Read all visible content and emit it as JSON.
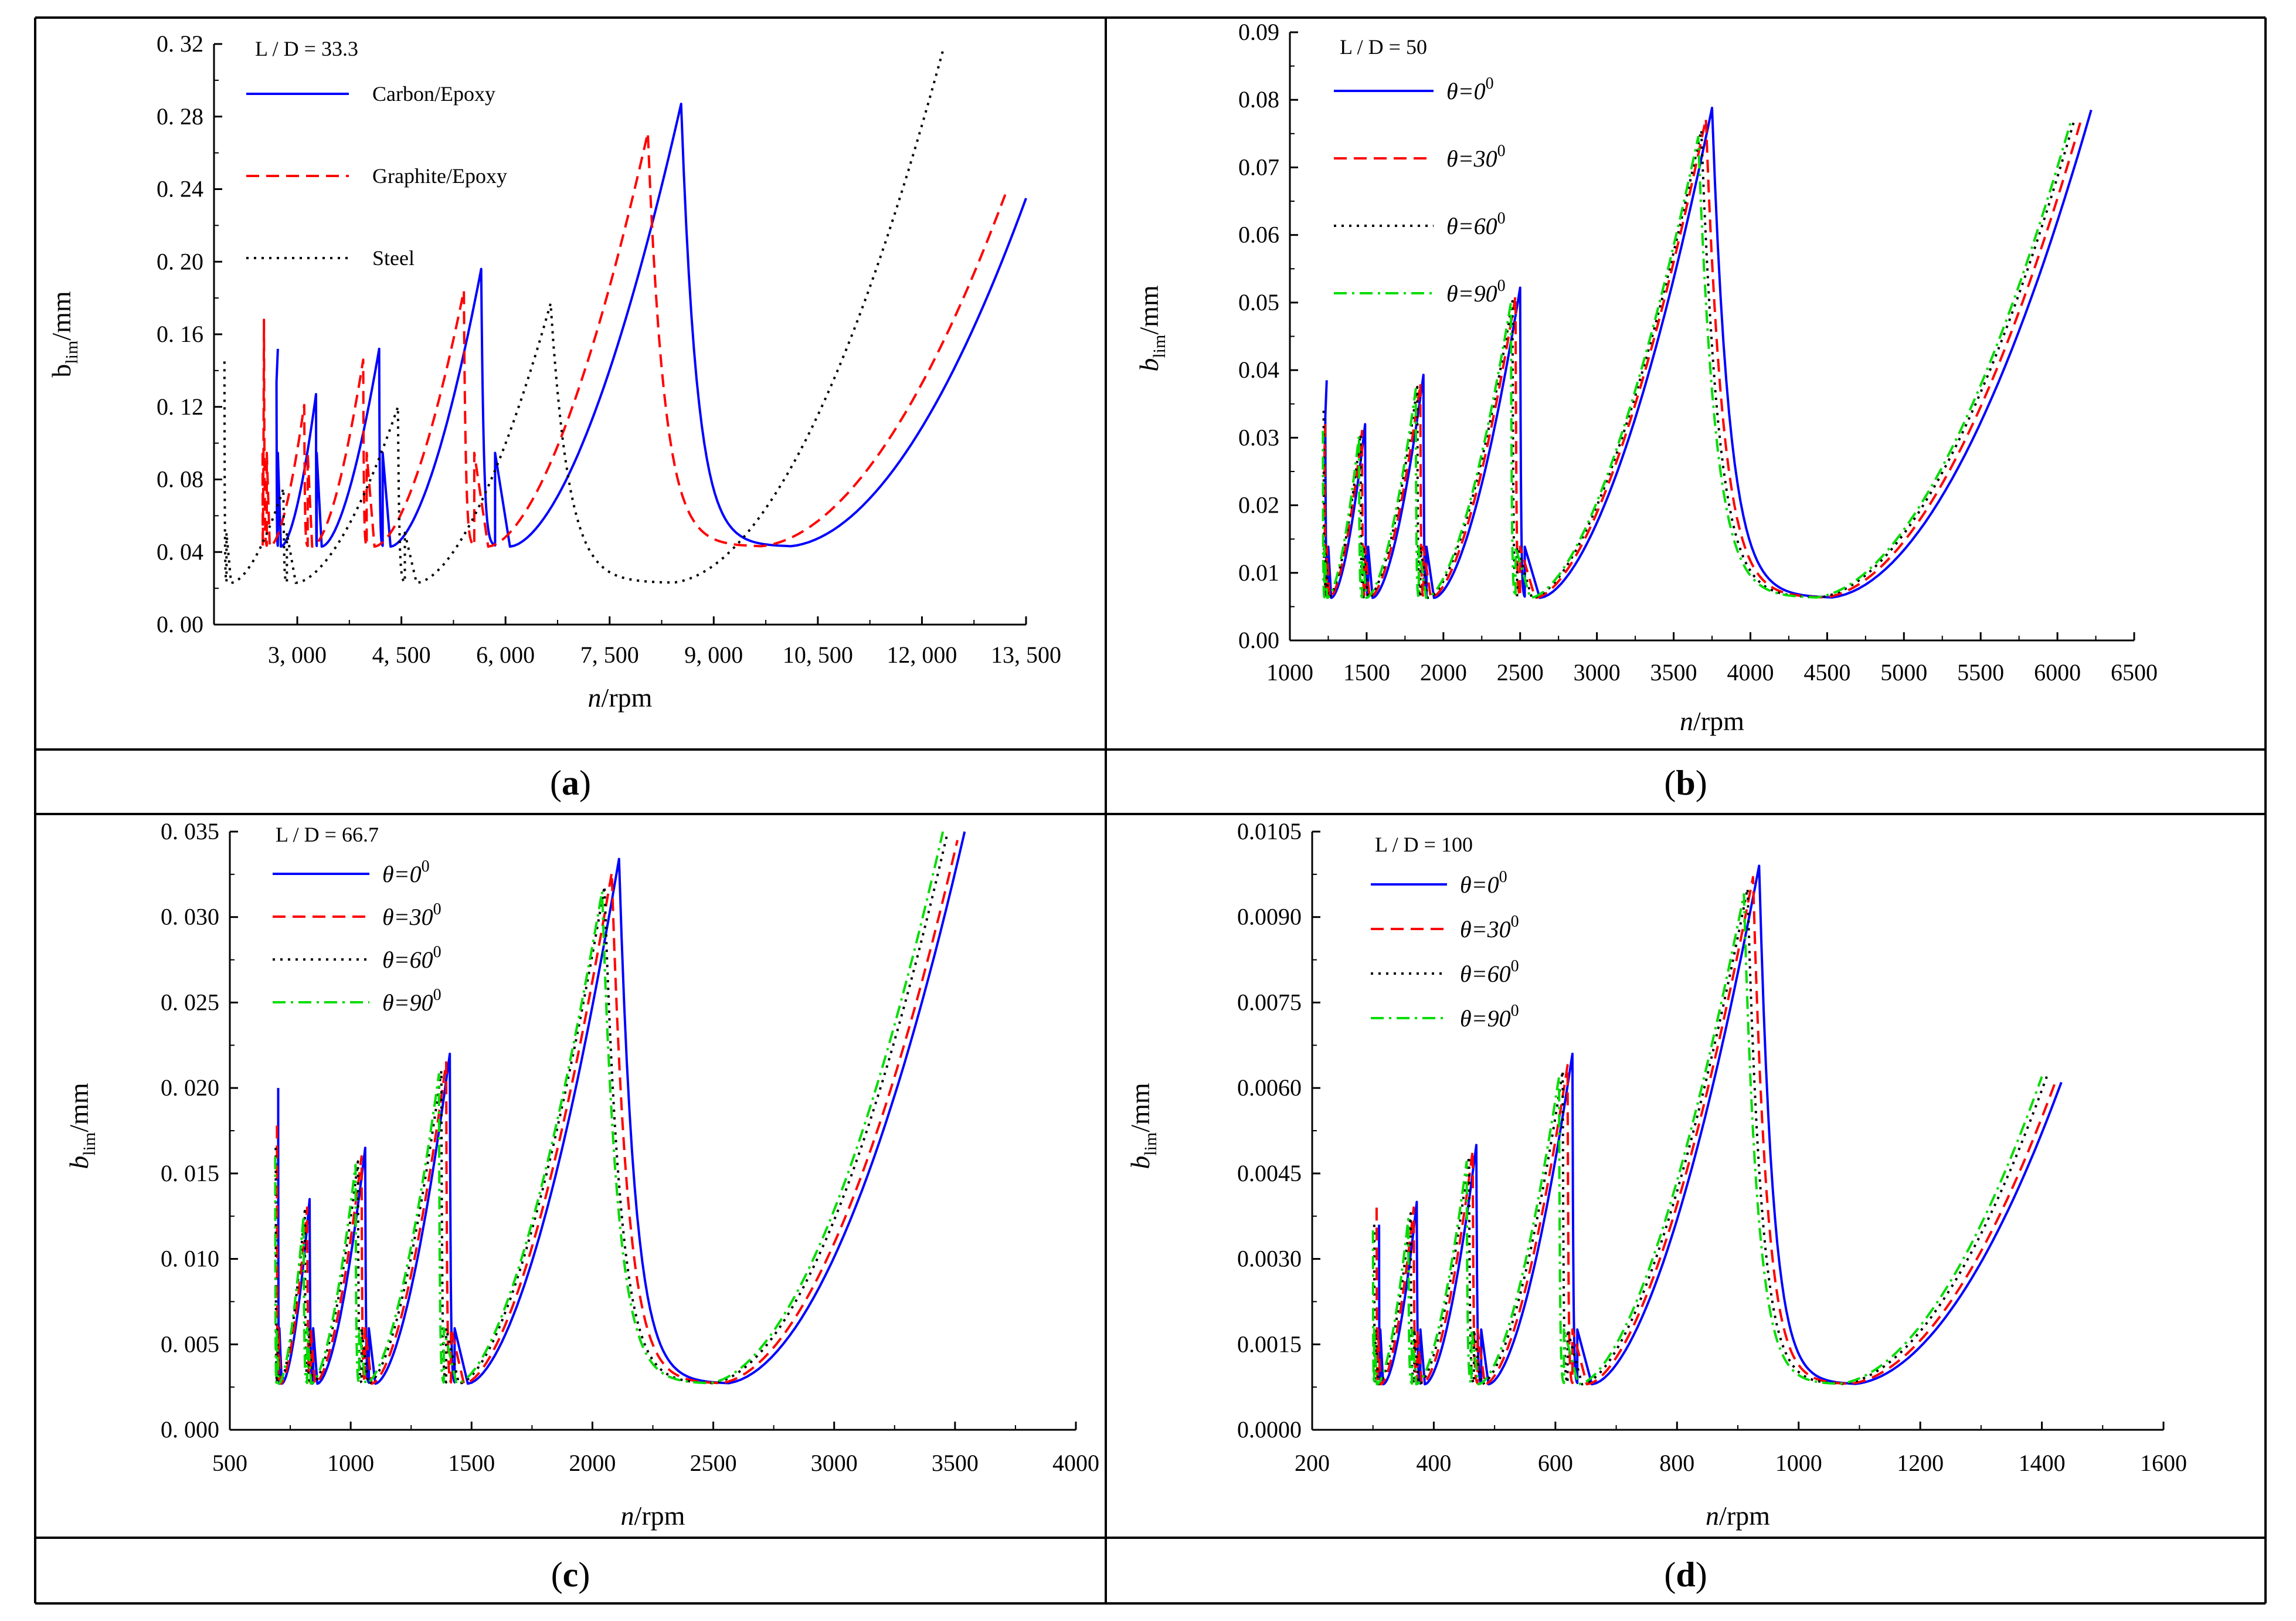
{
  "colors": {
    "blue": "#0000ff",
    "red": "#ff0000",
    "black": "#000000",
    "green": "#00dd00",
    "frame": "#000000"
  },
  "chart_data": [
    {
      "panel": "a",
      "type": "line",
      "caption": {
        "open": "(",
        "letter": "a",
        "close": ")"
      },
      "annotation": "L / D = 33.3",
      "xlabel": {
        "italic": "n",
        "rest": "/rpm"
      },
      "ylabel": {
        "main": "b",
        "sub": "lim",
        "rest": "/mm",
        "italic": false
      },
      "xlim": [
        1800,
        13500
      ],
      "ylim": [
        0,
        0.32
      ],
      "xticks": [
        3000,
        4500,
        6000,
        7500,
        9000,
        10500,
        12000,
        13500
      ],
      "xtick_labels": [
        "3, 000",
        "4, 500",
        "6, 000",
        "7, 500",
        "9, 000",
        "10, 500",
        "12, 000",
        "13, 500"
      ],
      "yticks": [
        0,
        0.04,
        0.08,
        0.12,
        0.16,
        0.2,
        0.24,
        0.28,
        0.32
      ],
      "ytick_labels": [
        "0. 00",
        "0. 04",
        "0. 08",
        "0. 12",
        "0. 16",
        "0. 20",
        "0. 24",
        "0. 28",
        "0. 32"
      ],
      "legend_style": "plain",
      "legend": [
        {
          "label": "Carbon/Epoxy",
          "color": "#0000ff",
          "dash": "solid"
        },
        {
          "label": "Graphite/Epoxy",
          "color": "#ff0000",
          "dash": "dashed"
        },
        {
          "label": "Steel",
          "color": "#000000",
          "dash": "dotted"
        }
      ],
      "series": [
        {
          "name": "Carbon/Epoxy",
          "color": "#0000ff",
          "dash": "solid",
          "end": [
            13500,
            0.235
          ],
          "min": 0.043,
          "lobes": [
            {
              "start": 2720,
              "peak": 2700,
              "pv": 0.152
            },
            {
              "start": 2720,
              "peak": 3270,
              "pv": 0.127
            },
            {
              "start": 3280,
              "peak": 4180,
              "pv": 0.152
            },
            {
              "start": 4230,
              "peak": 5650,
              "pv": 0.196
            },
            {
              "start": 5850,
              "peak": 8530,
              "pv": 0.287
            }
          ]
        },
        {
          "name": "Graphite/Epoxy",
          "color": "#ff0000",
          "dash": "dashed",
          "end": [
            13200,
            0.237
          ],
          "min": 0.043,
          "lobes": [
            {
              "start": 2500,
              "peak": 2520,
              "pv": 0.168
            },
            {
              "start": 2560,
              "peak": 3100,
              "pv": 0.121
            },
            {
              "start": 3150,
              "peak": 3950,
              "pv": 0.146
            },
            {
              "start": 4000,
              "peak": 5400,
              "pv": 0.184
            },
            {
              "start": 5550,
              "peak": 8050,
              "pv": 0.271
            }
          ]
        },
        {
          "name": "Steel",
          "color": "#000000",
          "dash": "dotted",
          "end": [
            12300,
            0.316
          ],
          "min": 0.023,
          "lobes": [
            {
              "start": 1950,
              "peak": 1950,
              "pv": 0.145
            },
            {
              "start": 1980,
              "peak": 2800,
              "pv": 0.075
            },
            {
              "start": 2850,
              "peak": 4450,
              "pv": 0.12
            },
            {
              "start": 4550,
              "peak": 6650,
              "pv": 0.177
            }
          ]
        }
      ]
    },
    {
      "panel": "b",
      "type": "line",
      "caption": {
        "open": "(",
        "letter": "b",
        "close": ")"
      },
      "annotation": "L / D = 50",
      "xlabel": {
        "italic": "n",
        "rest": "/rpm"
      },
      "ylabel": {
        "main": "b",
        "sub": "lim",
        "rest": "/mm",
        "italic": true
      },
      "xlim": [
        1000,
        6500
      ],
      "ylim": [
        0,
        0.09
      ],
      "xticks": [
        1000,
        1500,
        2000,
        2500,
        3000,
        3500,
        4000,
        4500,
        5000,
        5500,
        6000,
        6500
      ],
      "xtick_labels": [
        "1000",
        "1500",
        "2000",
        "2500",
        "3000",
        "3500",
        "4000",
        "4500",
        "5000",
        "5500",
        "6000",
        "6500"
      ],
      "yticks": [
        0,
        0.01,
        0.02,
        0.03,
        0.04,
        0.05,
        0.06,
        0.07,
        0.08,
        0.09
      ],
      "ytick_labels": [
        "0.00",
        "0.01",
        "0.02",
        "0.03",
        "0.04",
        "0.05",
        "0.06",
        "0.07",
        "0.08",
        "0.09"
      ],
      "legend_style": "theta",
      "legend": [
        {
          "label": "θ=0",
          "sup": "0",
          "color": "#0000ff",
          "dash": "solid"
        },
        {
          "label": "θ=30",
          "sup": "0",
          "color": "#ff0000",
          "dash": "dashed"
        },
        {
          "label": "θ=60",
          "sup": "0",
          "color": "#000000",
          "dash": "dotted"
        },
        {
          "label": "θ=90",
          "sup": "0",
          "color": "#00dd00",
          "dash": "dashdot"
        }
      ],
      "series": [
        {
          "name": "θ=0",
          "color": "#0000ff",
          "dash": "solid",
          "end": [
            6220,
            0.0785
          ],
          "min": 0.0063,
          "lobes": [
            {
              "start": 1240,
              "peak": 1230,
              "pv": 0.0385
            },
            {
              "start": 1250,
              "peak": 1490,
              "pv": 0.032
            },
            {
              "start": 1510,
              "peak": 1870,
              "pv": 0.0393
            },
            {
              "start": 1890,
              "peak": 2500,
              "pv": 0.0522
            },
            {
              "start": 2530,
              "peak": 3750,
              "pv": 0.0788
            }
          ]
        },
        {
          "name": "θ=30",
          "color": "#ff0000",
          "dash": "dashed",
          "end": [
            6160,
            0.0775
          ],
          "min": 0.0063,
          "lobes": [
            {
              "start": 1230,
              "peak": 1225,
              "pv": 0.032
            },
            {
              "start": 1240,
              "peak": 1470,
              "pv": 0.031
            },
            {
              "start": 1490,
              "peak": 1850,
              "pv": 0.038
            },
            {
              "start": 1870,
              "peak": 2470,
              "pv": 0.051
            },
            {
              "start": 2500,
              "peak": 3710,
              "pv": 0.0772
            }
          ]
        },
        {
          "name": "θ=60",
          "color": "#000000",
          "dash": "dotted",
          "end": [
            6110,
            0.077
          ],
          "min": 0.0063,
          "lobes": [
            {
              "start": 1220,
              "peak": 1220,
              "pv": 0.034
            },
            {
              "start": 1230,
              "peak": 1460,
              "pv": 0.0305
            },
            {
              "start": 1480,
              "peak": 1830,
              "pv": 0.0375
            },
            {
              "start": 1850,
              "peak": 2450,
              "pv": 0.0502
            },
            {
              "start": 2480,
              "peak": 3680,
              "pv": 0.0755
            }
          ]
        },
        {
          "name": "θ=90",
          "color": "#00dd00",
          "dash": "dashdot",
          "end": [
            6090,
            0.077
          ],
          "min": 0.0063,
          "lobes": [
            {
              "start": 1215,
              "peak": 1215,
              "pv": 0.031
            },
            {
              "start": 1225,
              "peak": 1450,
              "pv": 0.0303
            },
            {
              "start": 1470,
              "peak": 1820,
              "pv": 0.0372
            },
            {
              "start": 1840,
              "peak": 2440,
              "pv": 0.05
            },
            {
              "start": 2470,
              "peak": 3660,
              "pv": 0.0745
            }
          ]
        }
      ]
    },
    {
      "panel": "c",
      "type": "line",
      "caption": {
        "open": "(",
        "letter": "c",
        "close": ")"
      },
      "annotation": "L / D = 66.7",
      "xlabel": {
        "italic": "n",
        "rest": "/rpm"
      },
      "ylabel": {
        "main": "b",
        "sub": "lim",
        "rest": "/mm",
        "italic": true
      },
      "xlim": [
        500,
        4000
      ],
      "ylim": [
        0,
        0.035
      ],
      "xticks": [
        500,
        1000,
        1500,
        2000,
        2500,
        3000,
        3500,
        4000
      ],
      "xtick_labels": [
        "500",
        "1000",
        "1500",
        "2000",
        "2500",
        "3000",
        "3500",
        "4000"
      ],
      "yticks": [
        0,
        0.005,
        0.01,
        0.015,
        0.02,
        0.025,
        0.03,
        0.035
      ],
      "ytick_labels": [
        "0. 000",
        "0. 005",
        "0. 010",
        "0. 015",
        "0. 020",
        "0. 025",
        "0. 030",
        "0. 035"
      ],
      "legend_style": "theta",
      "legend": [
        {
          "label": "θ=0",
          "sup": "0",
          "color": "#0000ff",
          "dash": "solid"
        },
        {
          "label": "θ=30",
          "sup": "0",
          "color": "#ff0000",
          "dash": "dashed"
        },
        {
          "label": "θ=60",
          "sup": "0",
          "color": "#000000",
          "dash": "dotted"
        },
        {
          "label": "θ=90",
          "sup": "0",
          "color": "#00dd00",
          "dash": "dashdot"
        }
      ],
      "series": [
        {
          "name": "θ=0",
          "color": "#0000ff",
          "dash": "solid",
          "end": [
            3540,
            0.035
          ],
          "min": 0.0027,
          "lobes": [
            {
              "start": 700,
              "peak": 700,
              "pv": 0.02
            },
            {
              "start": 705,
              "peak": 830,
              "pv": 0.0135
            },
            {
              "start": 845,
              "peak": 1060,
              "pv": 0.0165
            },
            {
              "start": 1075,
              "peak": 1410,
              "pv": 0.022
            },
            {
              "start": 1430,
              "peak": 2110,
              "pv": 0.0334
            }
          ]
        },
        {
          "name": "θ=30",
          "color": "#ff0000",
          "dash": "dashed",
          "end": [
            3510,
            0.0345
          ],
          "min": 0.0027,
          "lobes": [
            {
              "start": 695,
              "peak": 695,
              "pv": 0.0178
            },
            {
              "start": 700,
              "peak": 820,
              "pv": 0.013
            },
            {
              "start": 835,
              "peak": 1045,
              "pv": 0.016
            },
            {
              "start": 1060,
              "peak": 1395,
              "pv": 0.0215
            },
            {
              "start": 1415,
              "peak": 2080,
              "pv": 0.0326
            }
          ]
        },
        {
          "name": "θ=60",
          "color": "#000000",
          "dash": "dotted",
          "end": [
            3470,
            0.035
          ],
          "min": 0.0027,
          "lobes": [
            {
              "start": 690,
              "peak": 690,
              "pv": 0.0165
            },
            {
              "start": 695,
              "peak": 810,
              "pv": 0.0128
            },
            {
              "start": 825,
              "peak": 1030,
              "pv": 0.0157
            },
            {
              "start": 1045,
              "peak": 1375,
              "pv": 0.021
            },
            {
              "start": 1395,
              "peak": 2050,
              "pv": 0.0318
            }
          ]
        },
        {
          "name": "θ=90",
          "color": "#00dd00",
          "dash": "dashdot",
          "end": [
            3450,
            0.035
          ],
          "min": 0.0027,
          "lobes": [
            {
              "start": 688,
              "peak": 688,
              "pv": 0.016
            },
            {
              "start": 693,
              "peak": 805,
              "pv": 0.0125
            },
            {
              "start": 820,
              "peak": 1020,
              "pv": 0.0155
            },
            {
              "start": 1035,
              "peak": 1365,
              "pv": 0.0208
            },
            {
              "start": 1385,
              "peak": 2040,
              "pv": 0.0315
            }
          ]
        }
      ]
    },
    {
      "panel": "d",
      "type": "line",
      "caption": {
        "open": "(",
        "letter": "d",
        "close": ")"
      },
      "annotation": "L / D = 100",
      "xlabel": {
        "italic": "n",
        "rest": "/rpm"
      },
      "ylabel": {
        "main": "b",
        "sub": "lim",
        "rest": "/mm",
        "italic": true
      },
      "xlim": [
        200,
        1600
      ],
      "ylim": [
        0,
        0.0105
      ],
      "xticks": [
        200,
        400,
        600,
        800,
        1000,
        1200,
        1400,
        1600
      ],
      "xtick_labels": [
        "200",
        "400",
        "600",
        "800",
        "1000",
        "1200",
        "1400",
        "1600"
      ],
      "yticks": [
        0,
        0.0015,
        0.003,
        0.0045,
        0.006,
        0.0075,
        0.009,
        0.0105
      ],
      "ytick_labels": [
        "0.0000",
        "0.0015",
        "0.0030",
        "0.0045",
        "0.0060",
        "0.0075",
        "0.0090",
        "0.0105"
      ],
      "legend_style": "theta",
      "legend": [
        {
          "label": "θ=0",
          "sup": "0",
          "color": "#0000ff",
          "dash": "solid"
        },
        {
          "label": "θ=30",
          "sup": "0",
          "color": "#ff0000",
          "dash": "dashed"
        },
        {
          "label": "θ=60",
          "sup": "0",
          "color": "#000000",
          "dash": "dotted"
        },
        {
          "label": "θ=90",
          "sup": "0",
          "color": "#00dd00",
          "dash": "dashdot"
        }
      ],
      "series": [
        {
          "name": "θ=0",
          "color": "#0000ff",
          "dash": "solid",
          "end": [
            1432,
            0.0061
          ],
          "min": 0.0008,
          "lobes": [
            {
              "start": 310,
              "peak": 310,
              "pv": 0.0036
            },
            {
              "start": 312,
              "peak": 372,
              "pv": 0.004
            },
            {
              "start": 378,
              "peak": 470,
              "pv": 0.005
            },
            {
              "start": 478,
              "peak": 628,
              "pv": 0.0066
            },
            {
              "start": 636,
              "peak": 935,
              "pv": 0.0099
            }
          ]
        },
        {
          "name": "θ=30",
          "color": "#ff0000",
          "dash": "dashed",
          "end": [
            1422,
            0.0061
          ],
          "min": 0.0008,
          "lobes": [
            {
              "start": 306,
              "peak": 306,
              "pv": 0.0039
            },
            {
              "start": 308,
              "peak": 367,
              "pv": 0.0039
            },
            {
              "start": 373,
              "peak": 464,
              "pv": 0.0049
            },
            {
              "start": 472,
              "peak": 620,
              "pv": 0.0064
            },
            {
              "start": 628,
              "peak": 925,
              "pv": 0.0097
            }
          ]
        },
        {
          "name": "θ=60",
          "color": "#000000",
          "dash": "dotted",
          "end": [
            1408,
            0.0062
          ],
          "min": 0.0008,
          "lobes": [
            {
              "start": 302,
              "peak": 302,
              "pv": 0.0036
            },
            {
              "start": 304,
              "peak": 362,
              "pv": 0.0038
            },
            {
              "start": 368,
              "peak": 458,
              "pv": 0.0048
            },
            {
              "start": 466,
              "peak": 612,
              "pv": 0.0063
            },
            {
              "start": 620,
              "peak": 916,
              "pv": 0.0095
            }
          ]
        },
        {
          "name": "θ=90",
          "color": "#00dd00",
          "dash": "dashdot",
          "end": [
            1400,
            0.0062
          ],
          "min": 0.0008,
          "lobes": [
            {
              "start": 300,
              "peak": 300,
              "pv": 0.0035
            },
            {
              "start": 302,
              "peak": 358,
              "pv": 0.0037
            },
            {
              "start": 364,
              "peak": 454,
              "pv": 0.0047
            },
            {
              "start": 462,
              "peak": 606,
              "pv": 0.0062
            },
            {
              "start": 614,
              "peak": 910,
              "pv": 0.0094
            }
          ]
        }
      ]
    }
  ]
}
